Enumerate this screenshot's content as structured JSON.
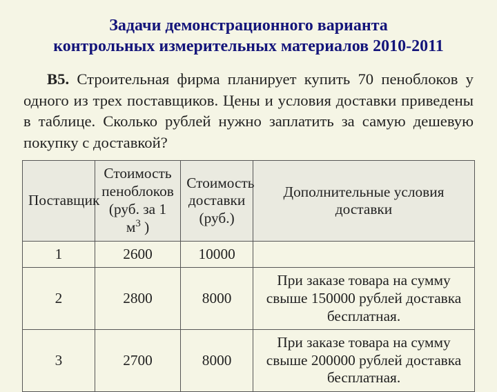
{
  "heading": {
    "color": "#14157a",
    "fontsize_pt": 18,
    "line1": "Задачи демонстрационного варианта",
    "line2": "контрольных измерительных материалов 2010-2011"
  },
  "problem": {
    "label": "В5.",
    "text": " Строительная фирма планирует купить 70 пеноблоков у одного из трех поставщиков. Цены и условия доставки приведены в таблице. Сколько рублей нужно заплатить за самую дешевую покупку с доставкой?",
    "fontsize_pt": 17,
    "color": "#222222"
  },
  "table": {
    "type": "table",
    "fontsize_pt": 16,
    "border_color": "#555555",
    "header_bg": "#eaeae0",
    "row_bg": "#f5f5e5",
    "col_widths_pct": [
      16,
      19,
      16,
      49
    ],
    "columns": [
      "Поставщик",
      "Стоимость пеноблоков (руб. за 1 м³ )",
      "Стоимость доставки (руб.)",
      "Дополнительные условия доставки"
    ],
    "rows": [
      {
        "supplier": "1",
        "price": "2600",
        "delivery": "10000",
        "cond": ""
      },
      {
        "supplier": "2",
        "price": "2800",
        "delivery": "8000",
        "cond": "При заказе товара на сумму свыше 150000 рублей доставка бесплатная."
      },
      {
        "supplier": "3",
        "price": "2700",
        "delivery": "8000",
        "cond": "При заказе товара на сумму свыше 200000 рублей доставка бесплатная."
      }
    ]
  },
  "background_color": "#f5f5e5"
}
